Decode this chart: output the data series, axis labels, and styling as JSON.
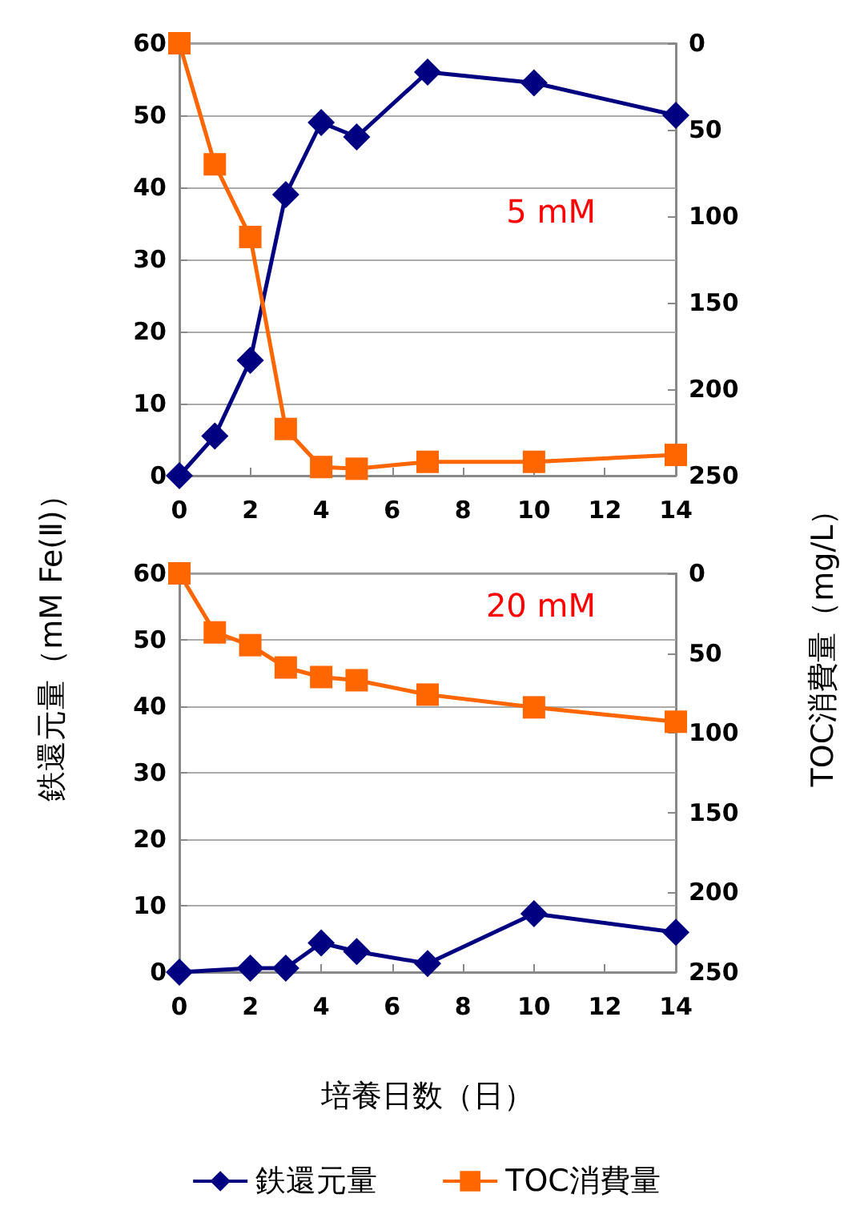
{
  "chart_data": [
    {
      "type": "line",
      "ylabel": "鉄還元量（mM Fe(Ⅱ)）",
      "y2label": "TOC消費量（mg/L）",
      "annotations": [
        "5 mM"
      ],
      "x": [
        0,
        1,
        2,
        3,
        4,
        5,
        7,
        10,
        14
      ],
      "xlim": [
        0,
        14
      ],
      "xticks": [
        0,
        2,
        4,
        6,
        8,
        10,
        12,
        14
      ],
      "ylim": [
        0,
        60
      ],
      "yticks": [
        0,
        10,
        20,
        30,
        40,
        50,
        60
      ],
      "y2lim": [
        250,
        0
      ],
      "y2ticks": [
        0,
        50,
        100,
        150,
        200,
        250
      ],
      "grid": "y",
      "series": [
        {
          "color": "#000080",
          "marker": "diamond",
          "values": [
            0,
            5.5,
            16,
            39,
            49,
            47,
            56,
            54.5,
            50
          ]
        },
        {
          "color": "#ff6600",
          "marker": "square",
          "axis": "y2",
          "values": [
            0,
            70,
            112,
            223,
            245,
            246,
            242,
            242,
            238
          ]
        }
      ]
    },
    {
      "type": "line",
      "xlabel": "培養日数（日）",
      "annotations": [
        "20 mM"
      ],
      "legend": "bottom",
      "x": [
        0,
        2,
        3,
        4,
        5,
        7,
        10,
        14
      ],
      "xlim": [
        0,
        14
      ],
      "xticks": [
        0,
        2,
        4,
        6,
        8,
        10,
        12,
        14
      ],
      "ylim": [
        0,
        60
      ],
      "yticks": [
        0,
        10,
        20,
        30,
        40,
        50,
        60
      ],
      "y2lim": [
        250,
        0
      ],
      "y2ticks": [
        0,
        50,
        100,
        150,
        200,
        250
      ],
      "grid": "y",
      "series": [
        {
          "name": "鉄還元量",
          "color": "#000080",
          "marker": "diamond",
          "values": [
            0,
            0.6,
            0.6,
            4.4,
            3.1,
            1.3,
            8.8,
            6
          ]
        },
        {
          "name": "TOC消費量",
          "color": "#ff6600",
          "marker": "square",
          "axis": "y2",
          "x": [
            0,
            1,
            2,
            3,
            4,
            5,
            7,
            10,
            14
          ],
          "values": [
            0,
            37,
            45,
            59,
            65,
            67,
            76,
            84,
            93
          ]
        }
      ]
    }
  ]
}
